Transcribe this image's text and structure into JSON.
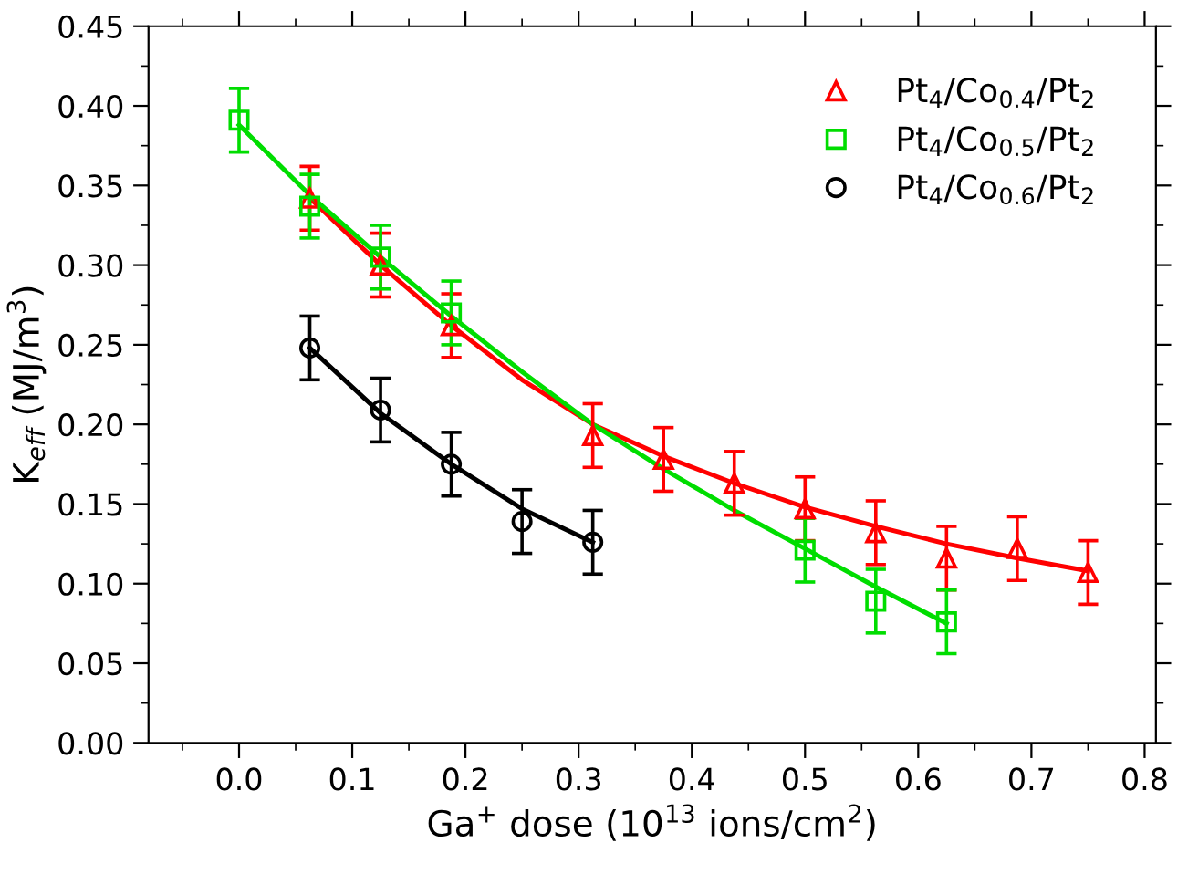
{
  "chart_data": {
    "type": "scatter",
    "xlabel": "Ga$^{+}$ dose (10$^{13}$ ions/cm$^{2}$)",
    "ylabel": "K$_{eff}$ (MJ/m$^{3}$)",
    "xlim": [
      -0.08,
      0.81
    ],
    "ylim": [
      0,
      0.45
    ],
    "xticks": [
      {
        "value": 0,
        "label": "0.0"
      },
      0.1,
      0.2,
      0.3,
      0.4,
      0.5,
      0.6,
      0.7,
      0.8
    ],
    "yticks": [
      {
        "value": 0,
        "label": "0.00"
      },
      0.05,
      {
        "value": 0.1,
        "label": "0.10"
      },
      0.15,
      {
        "value": 0.2,
        "label": "0.20"
      },
      0.25,
      {
        "value": 0.3,
        "label": "0.30"
      },
      0.35,
      {
        "value": 0.4,
        "label": "0.40"
      },
      0.45
    ],
    "legend": "top right",
    "grid": false,
    "series": [
      {
        "name": "Pt$_{4}$/Co$_{0.4}$/Pt$_{2}$",
        "color": "#ff0000",
        "marker": "triangle",
        "x": [
          0.0625,
          0.125,
          0.1875,
          0.3125,
          0.375,
          0.4375,
          0.5,
          0.5625,
          0.625,
          0.6875,
          0.75
        ],
        "values": [
          0.342,
          0.3,
          0.262,
          0.193,
          0.178,
          0.163,
          0.147,
          0.132,
          0.116,
          0.122,
          0.107
        ],
        "errors": [
          0.02,
          0.02,
          0.02,
          0.02,
          0.02,
          0.02,
          0.02,
          0.02,
          0.02,
          0.02,
          0.02
        ]
      },
      {
        "name": "Pt$_{4}$/Co$_{0.5}$/Pt$_{2}$",
        "color": "#00dd00",
        "marker": "square",
        "x": [
          0,
          0.0625,
          0.125,
          0.1875,
          0.5,
          0.5625,
          0.625
        ],
        "values": [
          0.391,
          0.337,
          0.305,
          0.27,
          0.121,
          0.089,
          0.076
        ],
        "errors": [
          0.02,
          0.02,
          0.02,
          0.02,
          0.02,
          0.02,
          0.02
        ]
      },
      {
        "name": "Pt$_{4}$/Co$_{0.6}$/Pt$_{2}$",
        "color": "#000000",
        "marker": "circle",
        "x": [
          0.0625,
          0.125,
          0.1875,
          0.25,
          0.3125
        ],
        "values": [
          0.248,
          0.209,
          0.175,
          0.139,
          0.126
        ],
        "errors": [
          0.02,
          0.02,
          0.02,
          0.02,
          0.02
        ]
      },
      {
        "type": "line",
        "color": "#ff0000",
        "x": [
          0.0625,
          0.125,
          0.1875,
          0.25,
          0.3125,
          0.375,
          0.4375,
          0.5,
          0.5625,
          0.625,
          0.6875,
          0.75
        ],
        "values": [
          0.342,
          0.3,
          0.262,
          0.228,
          0.2,
          0.18,
          0.163,
          0.148,
          0.136,
          0.125,
          0.116,
          0.108
        ]
      },
      {
        "type": "line",
        "color": "#00dd00",
        "x": [
          0,
          0.0625,
          0.125,
          0.1875,
          0.25,
          0.3125,
          0.375,
          0.4375,
          0.5,
          0.5625,
          0.625
        ],
        "values": [
          0.388,
          0.344,
          0.305,
          0.268,
          0.233,
          0.2,
          0.172,
          0.146,
          0.122,
          0.098,
          0.075
        ]
      },
      {
        "type": "line",
        "color": "#000000",
        "x": [
          0.0625,
          0.125,
          0.1875,
          0.25,
          0.3125
        ],
        "values": [
          0.248,
          0.207,
          0.175,
          0.147,
          0.126
        ]
      }
    ]
  }
}
